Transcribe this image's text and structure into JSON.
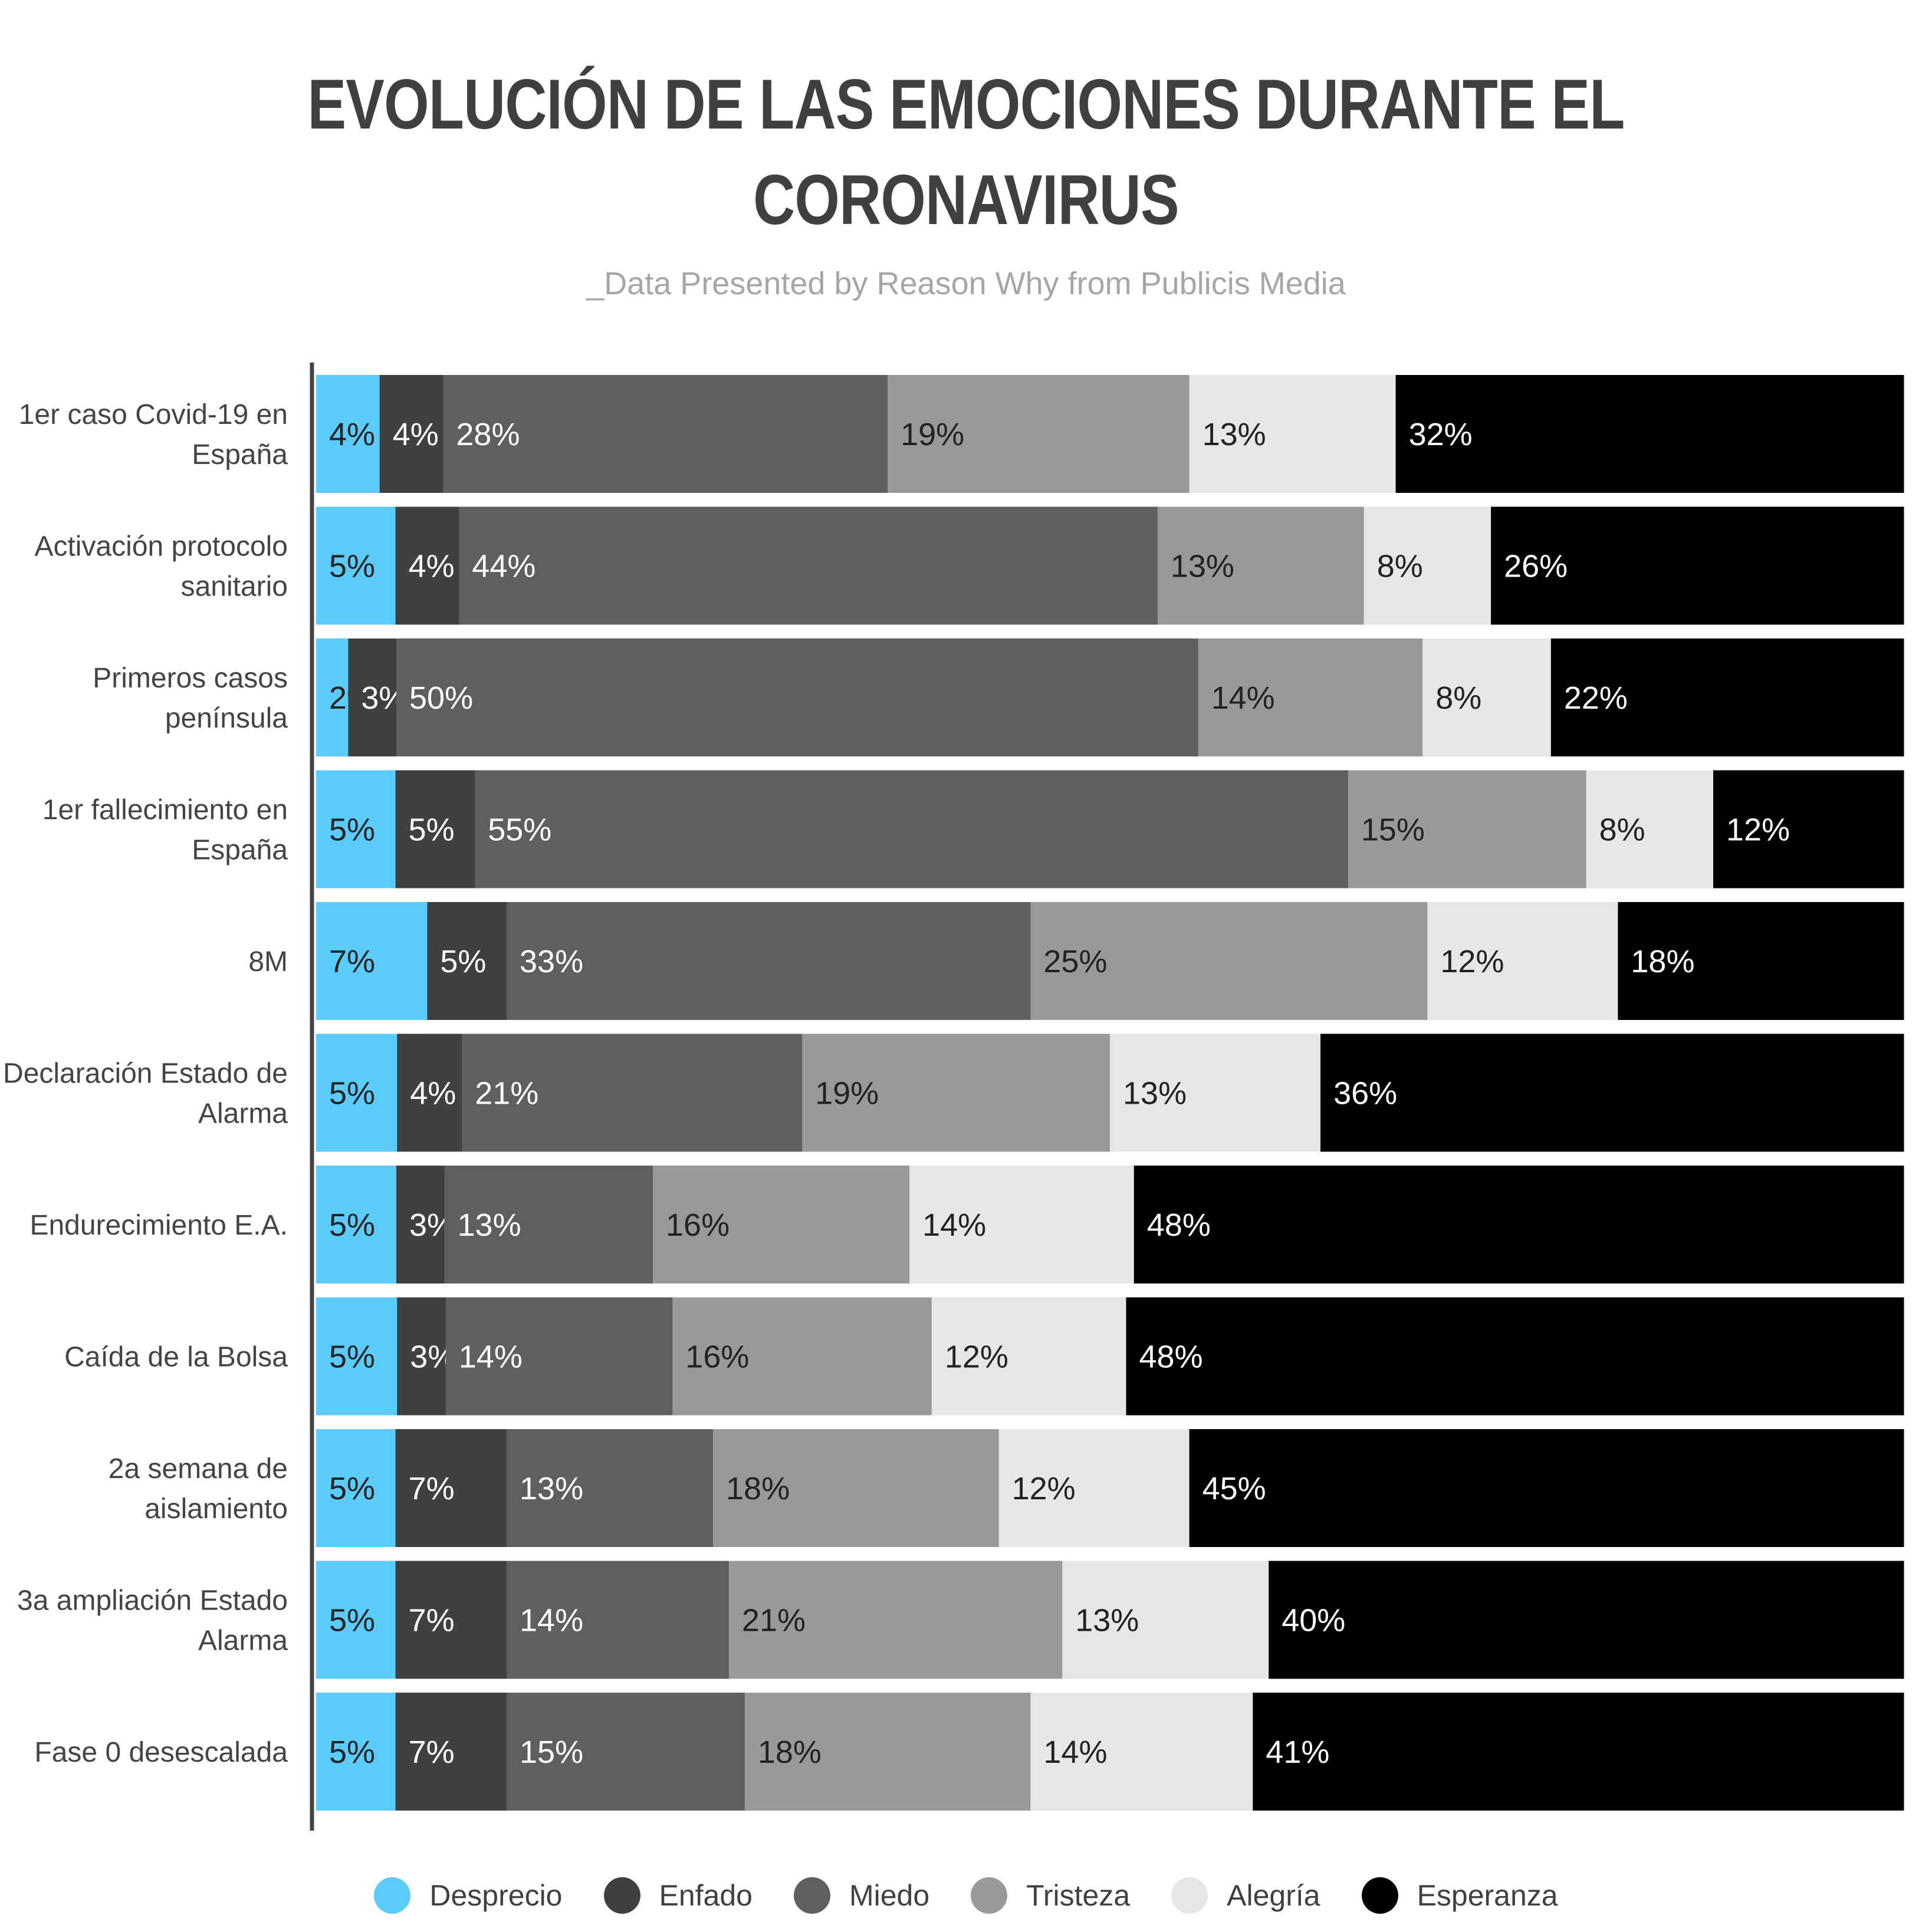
{
  "title_lines": [
    "EVOLUCIÓN DE LAS EMOCIONES DURANTE EL",
    "CORONAVIRUS"
  ],
  "subtitle": "_Data Presented by Reason Why from Publicis Media",
  "chart_data": {
    "type": "bar",
    "orientation": "horizontal",
    "stacked": true,
    "title": "EVOLUCIÓN DE LAS EMOCIONES DURANTE EL CORONAVIRUS",
    "subtitle": "_Data Presented by Reason Why from Publicis Media",
    "categories": [
      [
        "1er caso Covid-19 en",
        "España"
      ],
      [
        "Activación protocolo",
        "sanitario"
      ],
      [
        "Primeros casos",
        "península"
      ],
      [
        "1er fallecimiento en",
        "España"
      ],
      [
        "8M"
      ],
      [
        "Declaración Estado de",
        "Alarma"
      ],
      [
        "Endurecimiento E.A."
      ],
      [
        "Caída de la Bolsa"
      ],
      [
        "2a semana de",
        "aislamiento"
      ],
      [
        "3a ampliación Estado",
        "Alarma"
      ],
      [
        "Fase 0 desescalada"
      ]
    ],
    "series": [
      {
        "name": "Desprecio",
        "color": "#5bcbfb",
        "text_color": "#222222",
        "values": [
          4,
          5,
          2,
          5,
          7,
          5,
          5,
          5,
          5,
          5,
          5
        ]
      },
      {
        "name": "Enfado",
        "color": "#404040",
        "text_color": "#ffffff",
        "values": [
          4,
          4,
          3,
          5,
          5,
          4,
          3,
          3,
          7,
          7,
          7
        ]
      },
      {
        "name": "Miedo",
        "color": "#5f5f5f",
        "text_color": "#ffffff",
        "values": [
          28,
          44,
          50,
          55,
          33,
          21,
          13,
          14,
          13,
          14,
          15
        ]
      },
      {
        "name": "Tristeza",
        "color": "#999999",
        "text_color": "#222222",
        "values": [
          19,
          13,
          14,
          15,
          25,
          19,
          16,
          16,
          18,
          21,
          18
        ]
      },
      {
        "name": "Alegría",
        "color": "#e6e6e6",
        "text_color": "#222222",
        "values": [
          13,
          8,
          8,
          8,
          12,
          13,
          14,
          12,
          12,
          13,
          14
        ]
      },
      {
        "name": "Esperanza",
        "color": "#000000",
        "text_color": "#ffffff",
        "values": [
          32,
          26,
          22,
          12,
          18,
          36,
          48,
          48,
          45,
          40,
          41
        ]
      }
    ],
    "value_suffix": "%",
    "legend_position": "bottom",
    "grid": false
  }
}
